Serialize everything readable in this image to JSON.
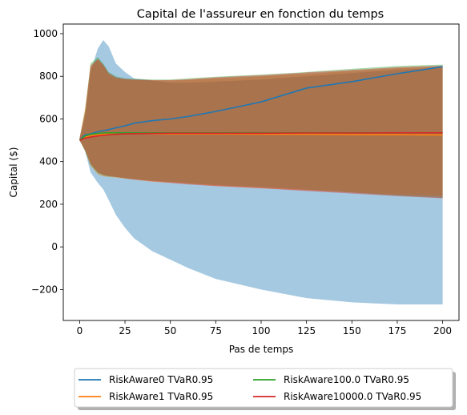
{
  "chart_data": {
    "type": "line",
    "title": "Capital de l'assureur en fonction du temps",
    "xlabel": "Pas de temps",
    "ylabel": "Capital ($)",
    "xlim": [
      -9,
      209
    ],
    "ylim": [
      -345,
      1045
    ],
    "x_ticks": [
      0,
      25,
      50,
      75,
      100,
      125,
      150,
      175,
      200
    ],
    "y_ticks": [
      -200,
      0,
      200,
      400,
      600,
      800,
      1000
    ],
    "grid": false,
    "legend_location": "below plot, two columns, shadowed box",
    "series": [
      {
        "name": "RiskAware0 TVaR0.95",
        "color": "#1f77b4",
        "x": [
          0,
          3,
          6,
          10,
          13,
          16,
          20,
          25,
          30,
          40,
          50,
          60,
          75,
          100,
          125,
          150,
          175,
          200
        ],
        "mean": [
          500,
          525,
          530,
          540,
          545,
          550,
          558,
          568,
          580,
          592,
          600,
          612,
          635,
          680,
          745,
          775,
          812,
          845
        ],
        "upper": [
          510,
          610,
          820,
          930,
          970,
          940,
          860,
          820,
          790,
          780,
          770,
          770,
          775,
          785,
          800,
          815,
          830,
          840
        ],
        "lower": [
          500,
          450,
          350,
          300,
          270,
          220,
          150,
          90,
          40,
          -20,
          -60,
          -100,
          -150,
          -200,
          -240,
          -260,
          -270,
          -270
        ]
      },
      {
        "name": "RiskAware1 TVaR0.95",
        "color": "#ff7f0e",
        "x": [
          0,
          3,
          6,
          10,
          13,
          16,
          20,
          25,
          30,
          40,
          50,
          60,
          75,
          100,
          125,
          150,
          175,
          200
        ],
        "mean": [
          500,
          515,
          520,
          525,
          528,
          530,
          531,
          532,
          532,
          531,
          530,
          530,
          530,
          529,
          528,
          527,
          526,
          525
        ],
        "upper": [
          510,
          650,
          840,
          880,
          850,
          810,
          790,
          785,
          783,
          780,
          780,
          783,
          790,
          800,
          812,
          825,
          838,
          845
        ],
        "lower": [
          500,
          450,
          380,
          340,
          330,
          328,
          325,
          320,
          315,
          305,
          300,
          295,
          285,
          275,
          265,
          255,
          245,
          240
        ]
      },
      {
        "name": "RiskAware100.0 TVaR0.95",
        "color": "#2ca02c",
        "x": [
          0,
          3,
          6,
          10,
          13,
          16,
          20,
          25,
          30,
          40,
          50,
          60,
          75,
          100,
          125,
          150,
          175,
          200
        ],
        "mean": [
          500,
          520,
          528,
          532,
          534,
          535,
          535,
          535,
          535,
          535,
          535,
          535,
          535,
          535,
          535,
          535,
          535,
          535
        ],
        "upper": [
          510,
          640,
          860,
          890,
          860,
          820,
          800,
          790,
          788,
          785,
          785,
          790,
          798,
          808,
          820,
          835,
          848,
          855
        ],
        "lower": [
          500,
          450,
          385,
          345,
          335,
          330,
          328,
          322,
          318,
          310,
          305,
          298,
          290,
          280,
          268,
          255,
          240,
          230
        ]
      },
      {
        "name": "RiskAware10000.0 TVaR0.95",
        "color": "#d62728",
        "x": [
          0,
          3,
          6,
          10,
          13,
          16,
          20,
          25,
          30,
          40,
          50,
          60,
          75,
          100,
          125,
          150,
          175,
          200
        ],
        "mean": [
          500,
          510,
          515,
          520,
          523,
          526,
          528,
          530,
          531,
          532,
          533,
          533,
          533,
          533,
          534,
          534,
          535,
          535
        ],
        "upper": [
          510,
          630,
          850,
          880,
          855,
          815,
          795,
          788,
          785,
          782,
          782,
          786,
          795,
          805,
          818,
          830,
          842,
          850
        ],
        "lower": [
          500,
          455,
          390,
          350,
          338,
          332,
          328,
          322,
          316,
          308,
          300,
          293,
          285,
          275,
          262,
          250,
          238,
          228
        ]
      }
    ]
  }
}
